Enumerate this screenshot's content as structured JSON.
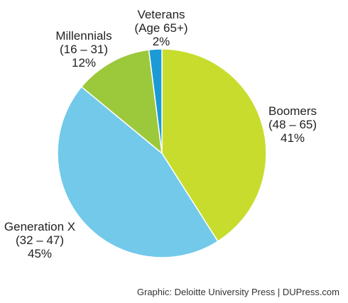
{
  "chart_data": {
    "type": "pie",
    "slices": [
      {
        "name": "Boomers",
        "range": "(48 – 65)",
        "value": 41,
        "label": "41%",
        "color": "#c8dc2e"
      },
      {
        "name": "Generation X",
        "range": "(32 – 47)",
        "value": 45,
        "label": "45%",
        "color": "#72c9ea"
      },
      {
        "name": "Millennials",
        "range": "(16 – 31)",
        "value": 12,
        "label": "12%",
        "color": "#9cc93c"
      },
      {
        "name": "Veterans",
        "range": "(Age 65+)",
        "value": 2,
        "label": "2%",
        "color": "#1b9ad6"
      }
    ],
    "start_angle_deg": 0,
    "direction": "clockwise",
    "grid": false,
    "legend": "none"
  },
  "credit": "Graphic: Deloitte University Press | DUPress.com"
}
